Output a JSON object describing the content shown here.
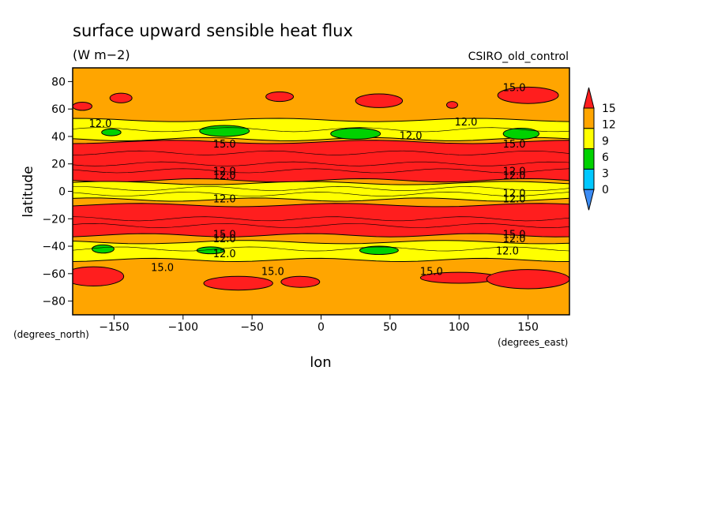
{
  "chart_data": {
    "type": "heatmap",
    "title": "surface upward sensible heat flux",
    "subtitle": "(W m−2)",
    "model_label": "CSIRO_old_control",
    "xlabel": "lon",
    "ylabel": "latitude",
    "x_units": "(degrees_east)",
    "y_units": "(degrees_north)",
    "xlim": [
      -180,
      180
    ],
    "ylim": [
      -90,
      90
    ],
    "x_ticks": [
      -150,
      -100,
      -50,
      0,
      50,
      100,
      150
    ],
    "x_tick_labels": [
      "−150",
      "−100",
      "−50",
      "0",
      "50",
      "100",
      "150"
    ],
    "y_ticks": [
      80,
      60,
      40,
      20,
      0,
      -20,
      -40,
      -60,
      -80
    ],
    "y_tick_labels": [
      "80",
      "60",
      "40",
      "20",
      "0",
      "−20",
      "−40",
      "−60",
      "−80"
    ],
    "grid": false,
    "colorbar": {
      "placement": "right",
      "levels": [
        0,
        3,
        6,
        9,
        12,
        15
      ],
      "level_labels": [
        "0",
        "3",
        "6",
        "9",
        "12",
        "15"
      ],
      "colors": [
        "#3b8cf5",
        "#00c8ff",
        "#00d200",
        "#ffff00",
        "#ffa500",
        "#ff1e1e"
      ]
    },
    "background_band": {
      "min": 12,
      "max": 15,
      "color": "#ffa500"
    },
    "zonal_bands": [
      {
        "lat_min": 8,
        "lat_max": 36,
        "class": 15
      },
      {
        "lat_min": -10,
        "lat_max": -32,
        "class": 15
      },
      {
        "lat_min": -6,
        "lat_max": 6,
        "class": 9
      },
      {
        "lat_min": 38,
        "lat_max": 52,
        "class": 9
      },
      {
        "lat_min": -37,
        "lat_max": -50,
        "class": 9
      }
    ],
    "patches": [
      {
        "lon": -70,
        "lat": 44,
        "dlon": 18,
        "dlat": 4,
        "class": 6
      },
      {
        "lon": 25,
        "lat": 42,
        "dlon": 18,
        "dlat": 4,
        "class": 6
      },
      {
        "lon": 145,
        "lat": 42,
        "dlon": 13,
        "dlat": 4,
        "class": 6
      },
      {
        "lon": -152,
        "lat": 43,
        "dlon": 7,
        "dlat": 2.5,
        "class": 6
      },
      {
        "lon": -158,
        "lat": -42,
        "dlon": 8,
        "dlat": 3,
        "class": 6
      },
      {
        "lon": -80,
        "lat": -43,
        "dlon": 10,
        "dlat": 2.5,
        "class": 6
      },
      {
        "lon": 42,
        "lat": -43,
        "dlon": 14,
        "dlat": 3,
        "class": 6
      },
      {
        "lon": -145,
        "lat": 68,
        "dlon": 8,
        "dlat": 3.5,
        "class": 15
      },
      {
        "lon": -30,
        "lat": 69,
        "dlon": 10,
        "dlat": 3.5,
        "class": 15
      },
      {
        "lon": 42,
        "lat": 66,
        "dlon": 17,
        "dlat": 5,
        "class": 15
      },
      {
        "lon": 150,
        "lat": 70,
        "dlon": 22,
        "dlat": 6,
        "class": 15
      },
      {
        "lon": -173,
        "lat": 62,
        "dlon": 7,
        "dlat": 3,
        "class": 15
      },
      {
        "lon": 95,
        "lat": 63,
        "dlon": 4,
        "dlat": 2.5,
        "class": 15
      },
      {
        "lon": -165,
        "lat": -62,
        "dlon": 22,
        "dlat": 7,
        "class": 15
      },
      {
        "lon": -60,
        "lat": -67,
        "dlon": 25,
        "dlat": 5,
        "class": 15
      },
      {
        "lon": -15,
        "lat": -66,
        "dlon": 14,
        "dlat": 4,
        "class": 15
      },
      {
        "lon": 100,
        "lat": -63,
        "dlon": 28,
        "dlat": 4,
        "class": 15
      },
      {
        "lon": 150,
        "lat": -64,
        "dlon": 30,
        "dlat": 7,
        "class": 15
      }
    ],
    "contour_labels": [
      {
        "text": "12.0",
        "lon": -160,
        "lat": 47
      },
      {
        "text": "12.0",
        "lon": 105,
        "lat": 48
      },
      {
        "text": "12.0",
        "lon": 65,
        "lat": 38
      },
      {
        "text": "15.0",
        "lon": 140,
        "lat": 73
      },
      {
        "text": "15.0",
        "lon": -70,
        "lat": 32
      },
      {
        "text": "15.0",
        "lon": 140,
        "lat": 32
      },
      {
        "text": "12.0",
        "lon": -70,
        "lat": 12
      },
      {
        "text": "12.0",
        "lon": 140,
        "lat": 12
      },
      {
        "text": "12.0",
        "lon": -70,
        "lat": 9
      },
      {
        "text": "12.0",
        "lon": 140,
        "lat": 9
      },
      {
        "text": "12.0",
        "lon": 140,
        "lat": -4
      },
      {
        "text": "12.0",
        "lon": -70,
        "lat": -8
      },
      {
        "text": "12.0",
        "lon": 140,
        "lat": -8
      },
      {
        "text": "15.0",
        "lon": -70,
        "lat": -34
      },
      {
        "text": "15.0",
        "lon": 140,
        "lat": -34
      },
      {
        "text": "12.0",
        "lon": -70,
        "lat": -37
      },
      {
        "text": "12.0",
        "lon": 140,
        "lat": -37
      },
      {
        "text": "12.0",
        "lon": -70,
        "lat": -48
      },
      {
        "text": "12.0",
        "lon": 135,
        "lat": -46
      },
      {
        "text": "15.0",
        "lon": -115,
        "lat": -58
      },
      {
        "text": "15.0",
        "lon": -35,
        "lat": -61
      },
      {
        "text": "15.0",
        "lon": 80,
        "lat": -61
      }
    ]
  }
}
